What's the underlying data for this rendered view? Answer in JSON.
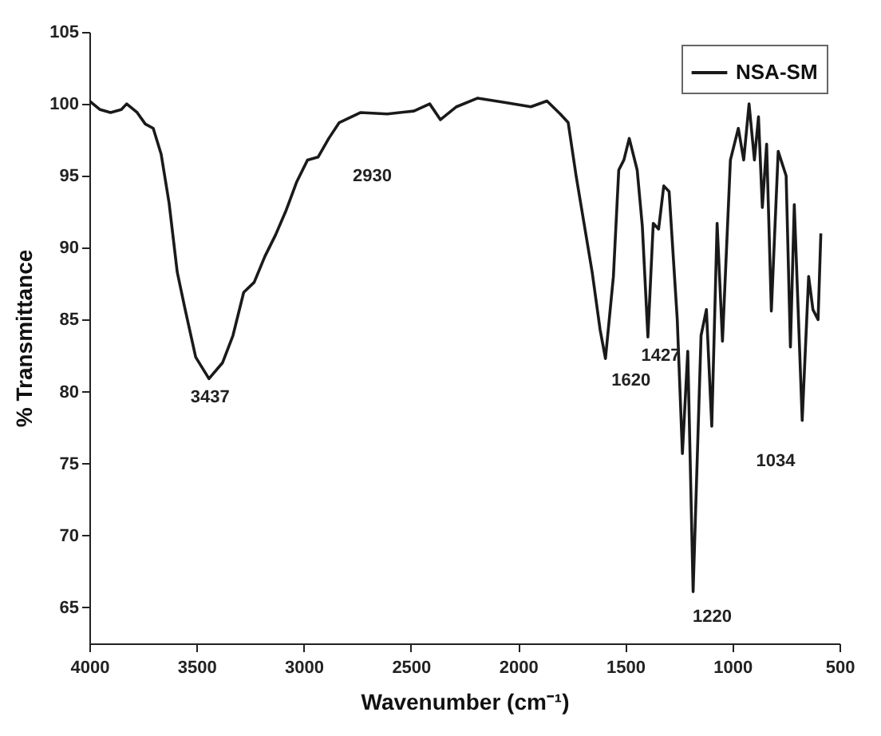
{
  "chart_data": {
    "type": "line",
    "xlabel": "Wavenumber (cm⁻¹)",
    "ylabel": "% Transmittance",
    "xlim": [
      4000,
      500
    ],
    "ylim": [
      62.5,
      105
    ],
    "xticks": [
      4000,
      3500,
      3000,
      2500,
      2000,
      1500,
      1000,
      500
    ],
    "yticks": [
      65,
      70,
      75,
      80,
      85,
      90,
      95,
      100,
      105
    ],
    "grid": false,
    "legend": "top right",
    "line_style": "solid",
    "marker": "none",
    "x": [
      4000,
      3950,
      3901,
      3851,
      3826,
      3777,
      3739,
      3702,
      3665,
      3628,
      3590,
      3553,
      3504,
      3442,
      3379,
      3330,
      3280,
      3231,
      3181,
      3131,
      3082,
      3032,
      2982,
      2933,
      2883,
      2834,
      2734,
      2610,
      2486,
      2412,
      2362,
      2287,
      2188,
      2064,
      1940,
      1865,
      1803,
      1766,
      1729,
      1692,
      1654,
      1617,
      1592,
      1555,
      1530,
      1506,
      1481,
      1444,
      1420,
      1394,
      1369,
      1344,
      1320,
      1295,
      1257,
      1233,
      1208,
      1183,
      1146,
      1121,
      1096,
      1071,
      1046,
      1009,
      972,
      947,
      922,
      897,
      878,
      860,
      840,
      818,
      786,
      749,
      729,
      711,
      674,
      644,
      624,
      600,
      587
    ],
    "series": [
      {
        "name": "NSA-SM",
        "color": "#1a1a1a",
        "values": [
          100.2,
          99.6,
          99.4,
          99.6,
          100.0,
          99.4,
          98.6,
          98.3,
          96.5,
          93.1,
          88.3,
          85.7,
          82.4,
          80.9,
          82.0,
          83.9,
          86.9,
          87.6,
          89.4,
          90.9,
          92.6,
          94.6,
          96.1,
          96.3,
          97.6,
          98.7,
          99.4,
          99.3,
          99.5,
          100.0,
          98.9,
          99.8,
          100.4,
          100.1,
          99.8,
          100.2,
          99.3,
          98.7,
          95.0,
          91.7,
          88.3,
          84.3,
          82.3,
          88.0,
          95.4,
          96.1,
          97.6,
          95.4,
          91.5,
          83.8,
          91.7,
          91.3,
          94.3,
          93.9,
          85.0,
          75.7,
          82.8,
          66.1,
          83.9,
          85.7,
          77.6,
          91.7,
          83.5,
          96.1,
          98.3,
          96.1,
          100.0,
          96.1,
          99.1,
          92.8,
          97.2,
          85.6,
          96.7,
          95.0,
          83.1,
          93.0,
          78.0,
          88.0,
          85.7,
          85.0,
          91.0
        ]
      }
    ],
    "annotations": [
      {
        "text": "3437",
        "x": 3437,
        "y": 80.9
      },
      {
        "text": "2930",
        "x": 2933,
        "y": 96.3
      },
      {
        "text": "1620",
        "x": 1592,
        "y": 82.3
      },
      {
        "text": "1427",
        "x": 1394,
        "y": 83.8
      },
      {
        "text": "1220",
        "x": 1183,
        "y": 66.1
      },
      {
        "text": "1034",
        "x": 1096,
        "y": 77.6
      }
    ]
  }
}
